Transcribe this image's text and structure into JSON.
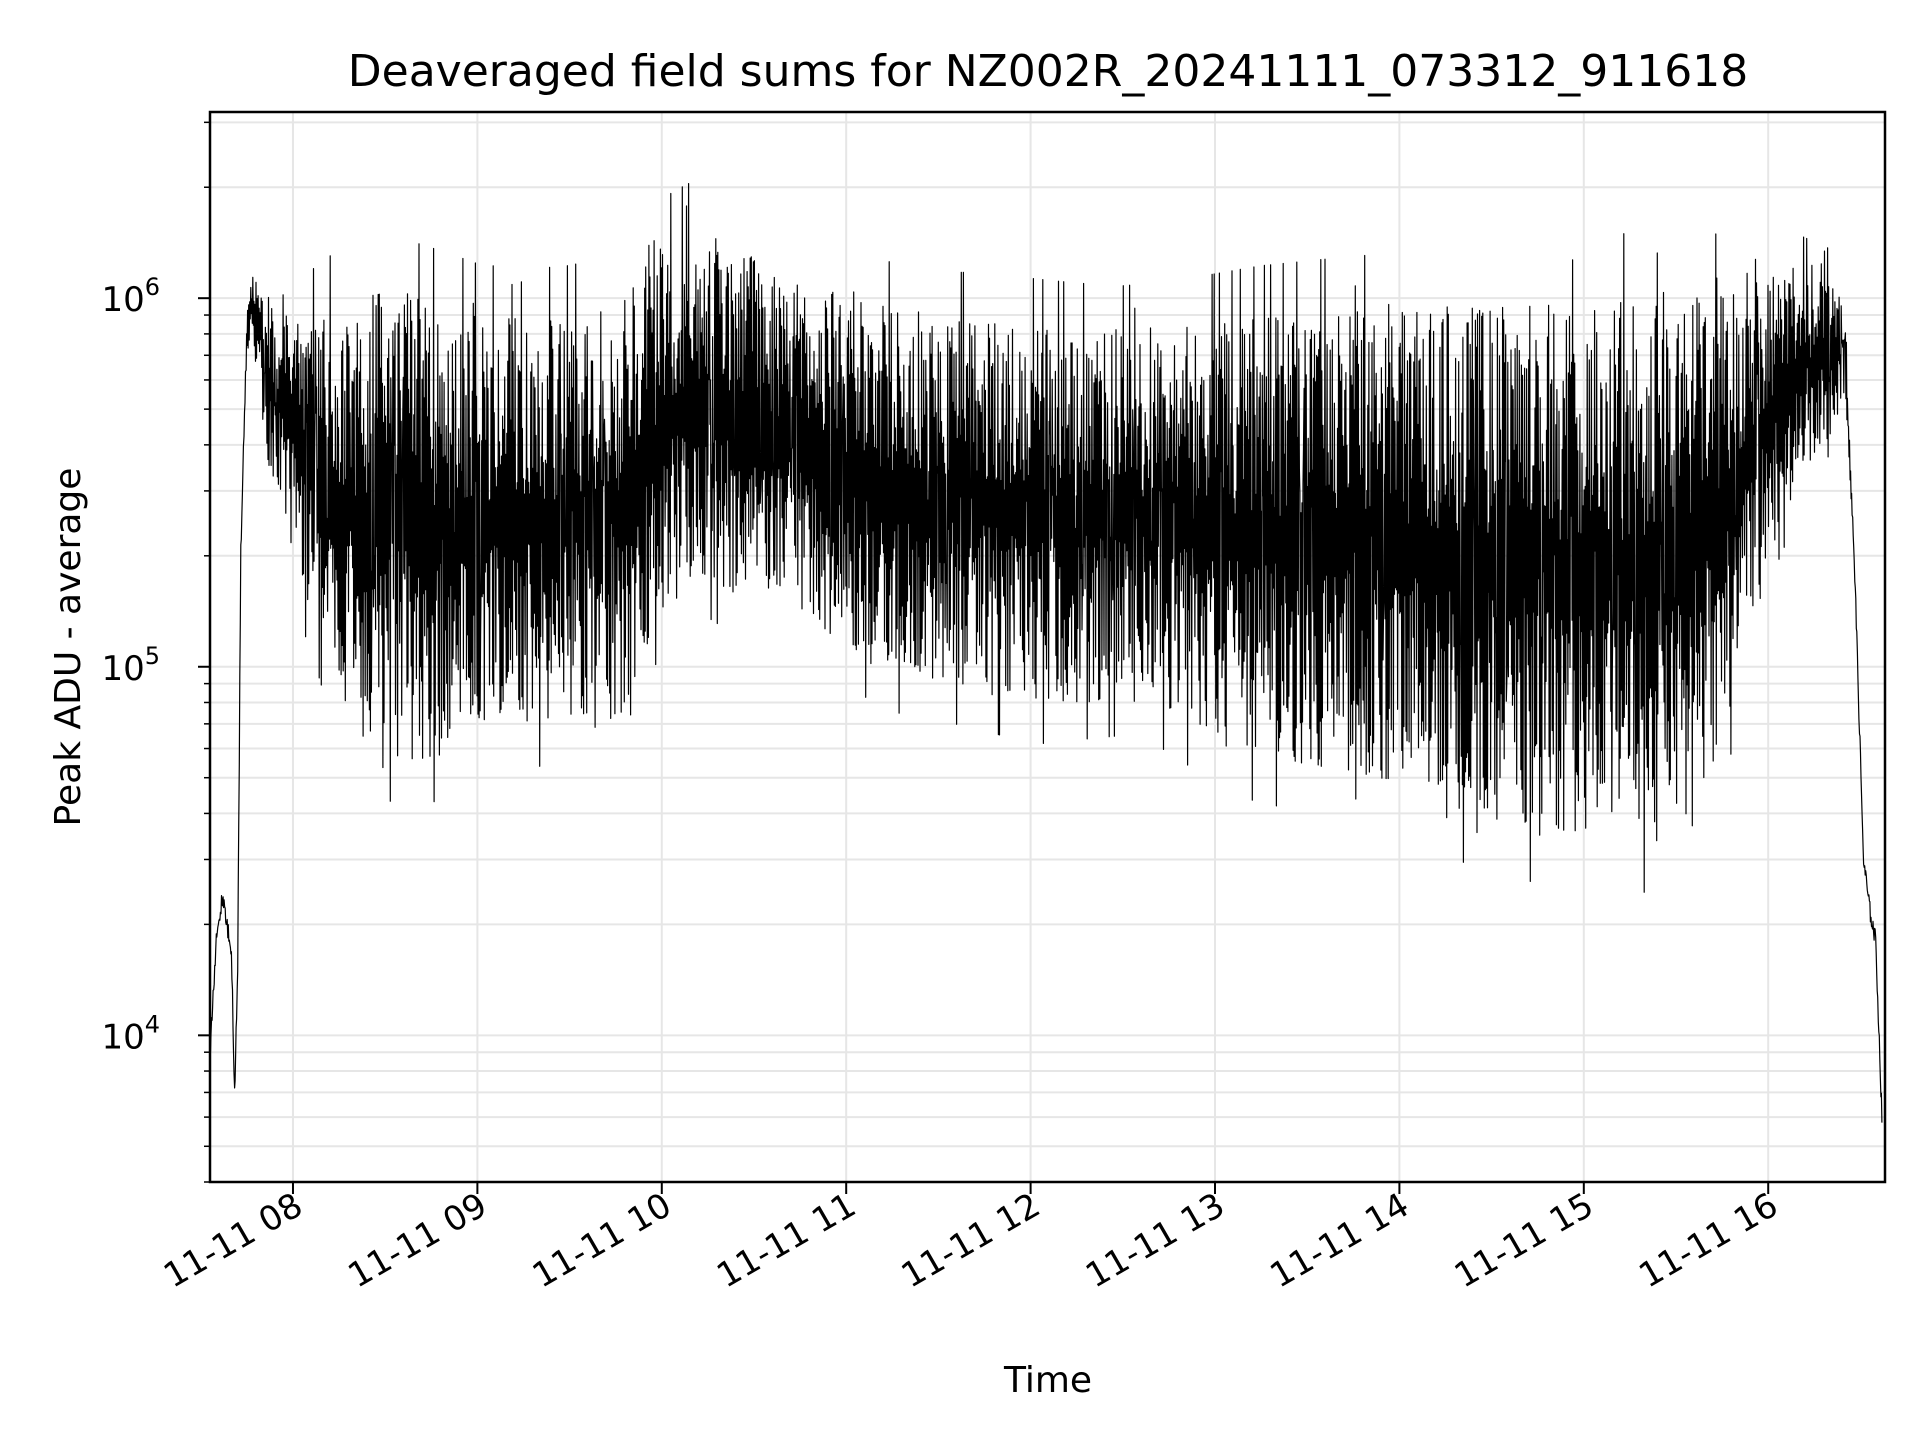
{
  "chart_data": {
    "type": "line",
    "title": "Deaveraged field sums for NZ002R_20241111_073312_911618",
    "xlabel": "Time",
    "ylabel": "Peak ADU - average",
    "yscale": "log",
    "ylim": [
      4000,
      3200000
    ],
    "xlim": [
      "2024-11-11 07:33",
      "2024-11-11 16:38"
    ],
    "grid": true,
    "x_ticks": [
      "11-11 08",
      "11-11 09",
      "11-11 10",
      "11-11 11",
      "11-11 12",
      "11-11 13",
      "11-11 14",
      "11-11 15",
      "11-11 16"
    ],
    "y_ticks": [
      {
        "value": 10000,
        "base": "10",
        "exp": "4"
      },
      {
        "value": 100000,
        "base": "10",
        "exp": "5"
      },
      {
        "value": 1000000,
        "base": "10",
        "exp": "6"
      }
    ],
    "series": [
      {
        "color": "#000000",
        "x": [
          "2024-11-11 07:33",
          "2024-11-11 07:35",
          "2024-11-11 07:37",
          "2024-11-11 07:40",
          "2024-11-11 07:41",
          "2024-11-11 07:42",
          "2024-11-11 07:43",
          "2024-11-11 07:44",
          "2024-11-11 07:45",
          "2024-11-11 07:46",
          "2024-11-11 07:48",
          "2024-11-11 07:50",
          "2024-11-11 07:53",
          "2024-11-11 07:55",
          "2024-11-11 08:00",
          "2024-11-11 08:10",
          "2024-11-11 08:20",
          "2024-11-11 08:30",
          "2024-11-11 08:40",
          "2024-11-11 08:50",
          "2024-11-11 09:00",
          "2024-11-11 09:15",
          "2024-11-11 09:30",
          "2024-11-11 09:45",
          "2024-11-11 10:00",
          "2024-11-11 10:10",
          "2024-11-11 10:20",
          "2024-11-11 10:30",
          "2024-11-11 10:45",
          "2024-11-11 11:00",
          "2024-11-11 11:15",
          "2024-11-11 11:30",
          "2024-11-11 11:45",
          "2024-11-11 12:00",
          "2024-11-11 12:15",
          "2024-11-11 12:30",
          "2024-11-11 12:45",
          "2024-11-11 13:00",
          "2024-11-11 13:15",
          "2024-11-11 13:30",
          "2024-11-11 13:45",
          "2024-11-11 14:00",
          "2024-11-11 14:15",
          "2024-11-11 14:30",
          "2024-11-11 14:45",
          "2024-11-11 15:00",
          "2024-11-11 15:15",
          "2024-11-11 15:30",
          "2024-11-11 15:45",
          "2024-11-11 16:00",
          "2024-11-11 16:10",
          "2024-11-11 16:20",
          "2024-11-11 16:25",
          "2024-11-11 16:28",
          "2024-11-11 16:31",
          "2024-11-11 16:33",
          "2024-11-11 16:35",
          "2024-11-11 16:37"
        ],
        "y_low": [
          9000,
          18000,
          24000,
          17000,
          7000,
          15000,
          200000,
          420000,
          680000,
          800000,
          700000,
          450000,
          320000,
          300000,
          220000,
          80000,
          62000,
          58000,
          56000,
          58000,
          62000,
          70000,
          68000,
          68000,
          130000,
          180000,
          160000,
          150000,
          140000,
          110000,
          95000,
          90000,
          85000,
          78000,
          80000,
          82000,
          75000,
          62000,
          56000,
          54000,
          52000,
          48000,
          42000,
          38000,
          36000,
          34000,
          34000,
          35000,
          60000,
          200000,
          300000,
          420000,
          550000,
          200000,
          30000,
          22000,
          18000,
          6000
        ],
        "y_high": [
          9000,
          18000,
          24000,
          17000,
          7000,
          15000,
          200000,
          420000,
          900000,
          1100000,
          1200000,
          1100000,
          1000000,
          950000,
          900000,
          950000,
          1000000,
          1050000,
          1000000,
          950000,
          900000,
          880000,
          900000,
          950000,
          1400000,
          1600000,
          1500000,
          1300000,
          1100000,
          1000000,
          950000,
          900000,
          880000,
          850000,
          830000,
          820000,
          830000,
          850000,
          880000,
          900000,
          920000,
          930000,
          940000,
          950000,
          970000,
          980000,
          1000000,
          1050000,
          1050000,
          1150000,
          1250000,
          1200000,
          900000,
          200000,
          30000,
          22000,
          18000,
          6000
        ]
      }
    ]
  }
}
